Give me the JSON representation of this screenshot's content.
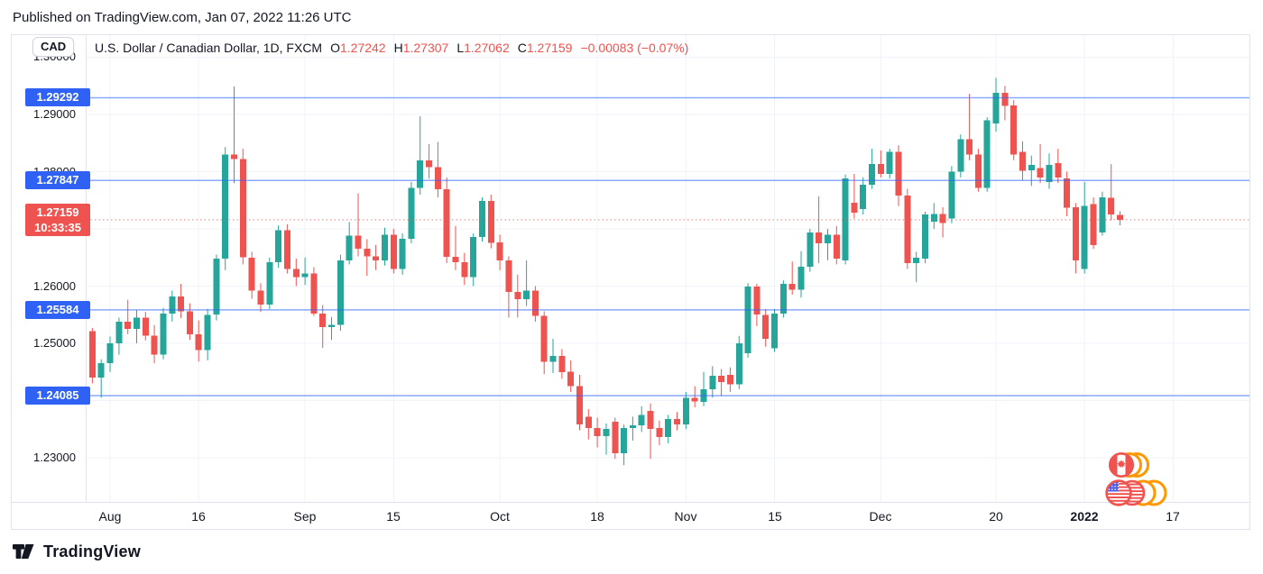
{
  "publish": {
    "text": "Published on TradingView.com, Jan 07, 2022 11:26 UTC"
  },
  "header": {
    "symbol_chip": "CAD",
    "title": "U.S. Dollar / Canadian Dollar, 1D, FXCM",
    "o_label": "O",
    "o_value": "1.27242",
    "h_label": "H",
    "h_value": "1.27307",
    "l_label": "L",
    "l_value": "1.27062",
    "c_label": "C",
    "c_value": "1.27159",
    "change": "−0.00083 (−0.07%)"
  },
  "footer": {
    "brand": "TradingView"
  },
  "icons": {
    "tradingview_logo": "tv-mark",
    "watermark_top_coin": "canada-flag-coin",
    "watermark_bottom_coin": "us-flag-coin"
  },
  "colors": {
    "up": "#26a69a",
    "down": "#ef5350",
    "level_line": "#2962ff",
    "badge_blue": "#2f62f4",
    "badge_red": "#ef5350",
    "grid": "#f0f3fa",
    "border": "#e0e3eb",
    "text": "#131722",
    "ohlc_value": "#ef5350",
    "coin_ring_orange": "#ff9800",
    "flag_red": "#ef5350",
    "flag_blue": "#4a5cf0"
  },
  "chart_data": {
    "type": "candlestick",
    "title": "U.S. Dollar / Canadian Dollar, 1D, FXCM",
    "legend": "single series (USDCAD daily OHLC)",
    "grid": true,
    "y_range": [
      1.2223,
      1.3039
    ],
    "y_ticks": [
      1.3,
      1.29,
      1.28,
      1.27,
      1.26,
      1.25,
      1.24,
      1.23
    ],
    "x_ticks": [
      {
        "label": "Aug",
        "bar": 2
      },
      {
        "label": "16",
        "bar": 12
      },
      {
        "label": "Sep",
        "bar": 24
      },
      {
        "label": "15",
        "bar": 34
      },
      {
        "label": "Oct",
        "bar": 46
      },
      {
        "label": "18",
        "bar": 57
      },
      {
        "label": "Nov",
        "bar": 67
      },
      {
        "label": "15",
        "bar": 77
      },
      {
        "label": "Dec",
        "bar": 89
      },
      {
        "label": "20",
        "bar": 102
      },
      {
        "label": "2022",
        "bar": 112,
        "bold": true
      },
      {
        "label": "17",
        "bar": 122
      }
    ],
    "levels": [
      1.29292,
      1.27847,
      1.25584,
      1.24085
    ],
    "current_price": {
      "price": 1.27159,
      "countdown": "10:33:35"
    },
    "candles": [
      [
        1.2521,
        1.2527,
        1.243,
        1.244
      ],
      [
        1.244,
        1.2472,
        1.2405,
        1.2465
      ],
      [
        1.2465,
        1.2512,
        1.245,
        1.25
      ],
      [
        1.25,
        1.2545,
        1.248,
        1.2538
      ],
      [
        1.2538,
        1.2576,
        1.2516,
        1.2525
      ],
      [
        1.2525,
        1.2558,
        1.25,
        1.2545
      ],
      [
        1.2545,
        1.2555,
        1.2505,
        1.2513
      ],
      [
        1.2513,
        1.2532,
        1.2465,
        1.248
      ],
      [
        1.248,
        1.2562,
        1.2472,
        1.2552
      ],
      [
        1.2552,
        1.2592,
        1.2538,
        1.2582
      ],
      [
        1.2582,
        1.2604,
        1.2544,
        1.2556
      ],
      [
        1.2556,
        1.257,
        1.2506,
        1.2516
      ],
      [
        1.2516,
        1.254,
        1.2468,
        1.2488
      ],
      [
        1.2488,
        1.256,
        1.247,
        1.255
      ],
      [
        1.255,
        1.2655,
        1.254,
        1.2648
      ],
      [
        1.2648,
        1.2843,
        1.2628,
        1.283
      ],
      [
        1.283,
        1.2949,
        1.278,
        1.2822
      ],
      [
        1.2822,
        1.284,
        1.2638,
        1.265
      ],
      [
        1.265,
        1.266,
        1.2578,
        1.2592
      ],
      [
        1.2592,
        1.2605,
        1.2555,
        1.2568
      ],
      [
        1.2568,
        1.265,
        1.256,
        1.2642
      ],
      [
        1.2642,
        1.2706,
        1.2632,
        1.2698
      ],
      [
        1.2698,
        1.2708,
        1.2622,
        1.263
      ],
      [
        1.263,
        1.2648,
        1.26,
        1.2616
      ],
      [
        1.2616,
        1.265,
        1.2602,
        1.2622
      ],
      [
        1.2622,
        1.2633,
        1.2548,
        1.2552
      ],
      [
        1.2552,
        1.2567,
        1.2492,
        1.2528
      ],
      [
        1.2528,
        1.2546,
        1.2506,
        1.2532
      ],
      [
        1.2532,
        1.2655,
        1.2522,
        1.2645
      ],
      [
        1.2645,
        1.2712,
        1.2638,
        1.2688
      ],
      [
        1.2688,
        1.2762,
        1.2652,
        1.2665
      ],
      [
        1.2665,
        1.2682,
        1.2618,
        1.2652
      ],
      [
        1.2652,
        1.2672,
        1.2628,
        1.2645
      ],
      [
        1.2645,
        1.2702,
        1.2636,
        1.269
      ],
      [
        1.269,
        1.27,
        1.2622,
        1.263
      ],
      [
        1.263,
        1.2692,
        1.262,
        1.2683
      ],
      [
        1.2683,
        1.2782,
        1.2675,
        1.2772
      ],
      [
        1.2772,
        1.2897,
        1.276,
        1.282
      ],
      [
        1.282,
        1.2848,
        1.2788,
        1.2808
      ],
      [
        1.2808,
        1.2852,
        1.2755,
        1.2769
      ],
      [
        1.2769,
        1.279,
        1.264,
        1.2651
      ],
      [
        1.2651,
        1.2705,
        1.2628,
        1.2642
      ],
      [
        1.2642,
        1.2658,
        1.2602,
        1.2616
      ],
      [
        1.2616,
        1.2692,
        1.26,
        1.2686
      ],
      [
        1.2686,
        1.2755,
        1.2678,
        1.2749
      ],
      [
        1.2749,
        1.276,
        1.2666,
        1.2676
      ],
      [
        1.2676,
        1.269,
        1.2628,
        1.2645
      ],
      [
        1.2645,
        1.2652,
        1.2545,
        1.259
      ],
      [
        1.259,
        1.262,
        1.2545,
        1.2577
      ],
      [
        1.2577,
        1.2645,
        1.2565,
        1.2592
      ],
      [
        1.2592,
        1.26,
        1.2538,
        1.2548
      ],
      [
        1.2548,
        1.2556,
        1.2446,
        1.2468
      ],
      [
        1.2468,
        1.2508,
        1.2448,
        1.2478
      ],
      [
        1.2478,
        1.249,
        1.2438,
        1.245
      ],
      [
        1.245,
        1.247,
        1.2415,
        1.2425
      ],
      [
        1.2425,
        1.2445,
        1.2348,
        1.2358
      ],
      [
        1.2372,
        1.2385,
        1.2332,
        1.2352
      ],
      [
        1.2352,
        1.237,
        1.2318,
        1.2338
      ],
      [
        1.2338,
        1.236,
        1.2305,
        1.235
      ],
      [
        1.2363,
        1.237,
        1.2298,
        1.2308
      ],
      [
        1.2308,
        1.2358,
        1.2287,
        1.2352
      ],
      [
        1.2352,
        1.2372,
        1.233,
        1.2357
      ],
      [
        1.2357,
        1.239,
        1.2345,
        1.2375
      ],
      [
        1.2382,
        1.2395,
        1.2298,
        1.235
      ],
      [
        1.2352,
        1.2365,
        1.2322,
        1.2336
      ],
      [
        1.2336,
        1.2375,
        1.2325,
        1.2368
      ],
      [
        1.2368,
        1.238,
        1.2348,
        1.2358
      ],
      [
        1.2358,
        1.2415,
        1.235,
        1.2405
      ],
      [
        1.2405,
        1.2425,
        1.2388,
        1.2398
      ],
      [
        1.2398,
        1.245,
        1.239,
        1.242
      ],
      [
        1.242,
        1.246,
        1.2405,
        1.2443
      ],
      [
        1.2443,
        1.2455,
        1.2408,
        1.2432
      ],
      [
        1.2445,
        1.2458,
        1.2415,
        1.2428
      ],
      [
        1.2428,
        1.2513,
        1.242,
        1.25
      ],
      [
        1.2483,
        1.2605,
        1.2475,
        1.2599
      ],
      [
        1.2599,
        1.2604,
        1.253,
        1.255
      ],
      [
        1.255,
        1.256,
        1.2494,
        1.2508
      ],
      [
        1.2491,
        1.256,
        1.2485,
        1.2552
      ],
      [
        1.2552,
        1.261,
        1.2545,
        1.2604
      ],
      [
        1.2604,
        1.2643,
        1.2585,
        1.2594
      ],
      [
        1.2594,
        1.2661,
        1.258,
        1.2634
      ],
      [
        1.2634,
        1.27,
        1.2625,
        1.2694
      ],
      [
        1.2694,
        1.2757,
        1.264,
        1.2675
      ],
      [
        1.2675,
        1.27,
        1.2645,
        1.269
      ],
      [
        1.269,
        1.2705,
        1.2638,
        1.2648
      ],
      [
        1.2645,
        1.2795,
        1.2638,
        1.2788
      ],
      [
        1.2746,
        1.2796,
        1.2718,
        1.2728
      ],
      [
        1.2735,
        1.279,
        1.2725,
        1.2777
      ],
      [
        1.2777,
        1.284,
        1.277,
        1.2813
      ],
      [
        1.2813,
        1.2837,
        1.279,
        1.2796
      ],
      [
        1.2796,
        1.284,
        1.2788,
        1.2835
      ],
      [
        1.2835,
        1.2846,
        1.274,
        1.2758
      ],
      [
        1.2758,
        1.277,
        1.263,
        1.264
      ],
      [
        1.264,
        1.266,
        1.2607,
        1.265
      ],
      [
        1.2648,
        1.273,
        1.264,
        1.2725
      ],
      [
        1.2713,
        1.2745,
        1.27,
        1.2726
      ],
      [
        1.2726,
        1.2738,
        1.2685,
        1.271
      ],
      [
        1.2718,
        1.281,
        1.271,
        1.28
      ],
      [
        1.28,
        1.2865,
        1.279,
        1.2857
      ],
      [
        1.2857,
        1.2936,
        1.282,
        1.283
      ],
      [
        1.283,
        1.284,
        1.2765,
        1.2772
      ],
      [
        1.2772,
        1.2895,
        1.2765,
        1.289
      ],
      [
        1.2884,
        1.2964,
        1.287,
        1.2938
      ],
      [
        1.2938,
        1.295,
        1.289,
        1.2915
      ],
      [
        1.2916,
        1.2925,
        1.282,
        1.283
      ],
      [
        1.2835,
        1.2853,
        1.2785,
        1.2802
      ],
      [
        1.2802,
        1.2828,
        1.2775,
        1.2812
      ],
      [
        1.2806,
        1.2848,
        1.278,
        1.279
      ],
      [
        1.2782,
        1.2832,
        1.277,
        1.2812
      ],
      [
        1.2815,
        1.284,
        1.278,
        1.279
      ],
      [
        1.2788,
        1.28,
        1.2722,
        1.2737
      ],
      [
        1.2738,
        1.2745,
        1.2622,
        1.2645
      ],
      [
        1.263,
        1.2782,
        1.2622,
        1.274
      ],
      [
        1.2743,
        1.2755,
        1.2665,
        1.2672
      ],
      [
        1.2694,
        1.2765,
        1.2688,
        1.2755
      ],
      [
        1.2754,
        1.2813,
        1.2715,
        1.2725
      ],
      [
        1.27242,
        1.27307,
        1.27062,
        1.27159
      ]
    ]
  }
}
